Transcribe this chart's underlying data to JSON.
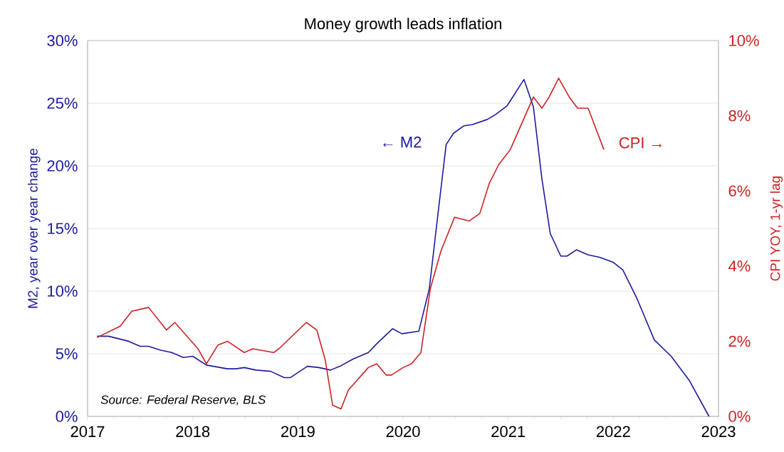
{
  "chart_data": {
    "type": "line",
    "title": "Money growth leads inflation",
    "ylabel": "M2, year over year change",
    "y2label": "CPI YOY, 1-yr lag",
    "xlim": [
      2017,
      2023
    ],
    "xticks": [
      2017,
      2018,
      2019,
      2020,
      2021,
      2022,
      2023
    ],
    "ylim": [
      0,
      30
    ],
    "yticks": [
      {
        "value": 0,
        "label": "0%"
      },
      {
        "value": 5,
        "label": "5%"
      },
      {
        "value": 10,
        "label": "10%"
      },
      {
        "value": 15,
        "label": "15%"
      },
      {
        "value": 20,
        "label": "20%"
      },
      {
        "value": 25,
        "label": "25%"
      },
      {
        "value": 30,
        "label": "30%"
      }
    ],
    "y2lim": [
      0,
      10
    ],
    "y2ticks": [
      {
        "value": 0,
        "label": "0%"
      },
      {
        "value": 2,
        "label": "2%"
      },
      {
        "value": 4,
        "label": "4%"
      },
      {
        "value": 6,
        "label": "6%"
      },
      {
        "value": 8,
        "label": "8%"
      },
      {
        "value": 10,
        "label": "10%"
      }
    ],
    "grid": "y",
    "series": [
      {
        "color": "#1c1c9c",
        "x": [
          2017.09,
          2017.2,
          2017.39,
          2017.5,
          2017.58,
          2017.69,
          2017.8,
          2017.91,
          2018.0,
          2018.13,
          2018.33,
          2018.41,
          2018.49,
          2018.6,
          2018.74,
          2018.87,
          2018.93,
          2019.09,
          2019.2,
          2019.31,
          2019.4,
          2019.53,
          2019.67,
          2019.75,
          2019.9,
          2019.99,
          2020.15,
          2020.25,
          2020.33,
          2020.41,
          2020.48,
          2020.58,
          2020.66,
          2020.8,
          2020.88,
          2020.99,
          2021.15,
          2021.24,
          2021.32,
          2021.4,
          2021.5,
          2021.56,
          2021.65,
          2021.76,
          2021.87,
          2022.0,
          2022.09,
          2022.22,
          2022.39,
          2022.55,
          2022.72,
          2022.91
        ],
        "values": [
          6.4,
          6.4,
          6.0,
          5.6,
          5.6,
          5.3,
          5.1,
          4.7,
          4.8,
          4.1,
          3.8,
          3.8,
          3.9,
          3.7,
          3.6,
          3.1,
          3.1,
          4.0,
          3.9,
          3.7,
          4.0,
          4.6,
          5.1,
          5.8,
          7.0,
          6.6,
          6.8,
          10.2,
          16.0,
          21.7,
          22.6,
          23.2,
          23.3,
          23.7,
          24.1,
          24.8,
          26.9,
          24.7,
          19.0,
          14.6,
          12.8,
          12.8,
          13.3,
          12.9,
          12.7,
          12.3,
          11.7,
          9.5,
          6.1,
          4.8,
          2.9,
          0
        ]
      },
      {
        "color": "#cc2222",
        "axis": "y2",
        "x": [
          2017.09,
          2017.31,
          2017.42,
          2017.58,
          2017.75,
          2017.83,
          2018.05,
          2018.13,
          2018.24,
          2018.33,
          2018.49,
          2018.57,
          2018.77,
          2018.82,
          2019.08,
          2019.18,
          2019.26,
          2019.33,
          2019.41,
          2019.48,
          2019.67,
          2019.75,
          2019.84,
          2019.89,
          2020.0,
          2020.08,
          2020.17,
          2020.26,
          2020.36,
          2020.49,
          2020.63,
          2020.73,
          2020.82,
          2020.91,
          2021.02,
          2021.24,
          2021.32,
          2021.39,
          2021.48,
          2021.58,
          2021.66,
          2021.76,
          2021.91
        ],
        "values": [
          2.1,
          2.4,
          2.8,
          2.9,
          2.3,
          2.5,
          1.8,
          1.4,
          1.9,
          2.0,
          1.7,
          1.8,
          1.7,
          1.8,
          2.5,
          2.3,
          1.5,
          0.3,
          0.2,
          0.7,
          1.3,
          1.4,
          1.1,
          1.1,
          1.3,
          1.4,
          1.7,
          3.4,
          4.4,
          5.3,
          5.2,
          5.4,
          6.2,
          6.7,
          7.1,
          8.5,
          8.2,
          8.5,
          9.0,
          8.5,
          8.2,
          8.2,
          7.1
        ]
      }
    ],
    "annotations": [
      "← M2",
      "CPI →",
      "Source: Federal Reserve, BLS"
    ]
  }
}
